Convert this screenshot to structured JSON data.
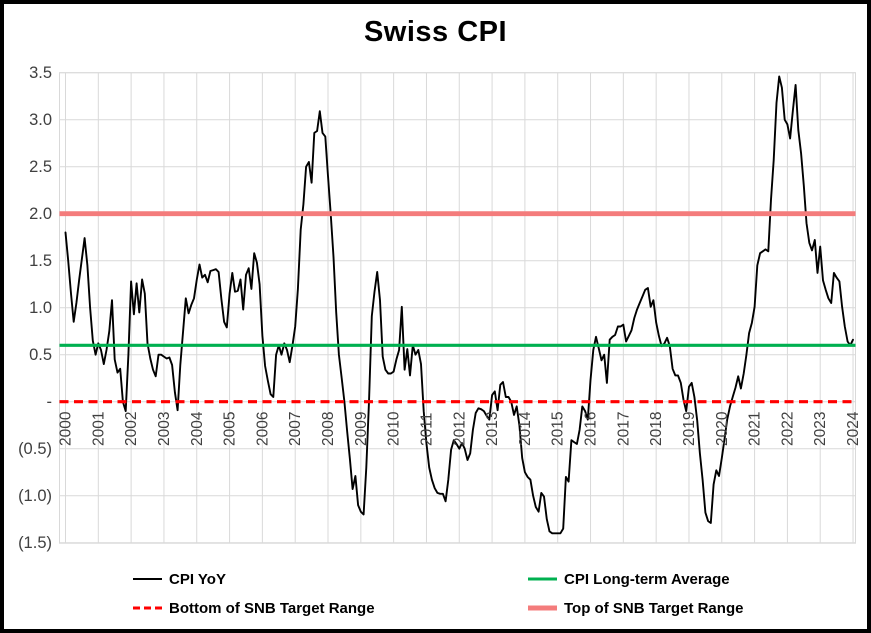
{
  "title": "Swiss CPI",
  "chart_data": {
    "type": "line",
    "title": "Swiss CPI",
    "x_start": "2000-01",
    "x_frequency": "monthly",
    "x_tick_labels": [
      "2000",
      "2001",
      "2002",
      "2003",
      "2004",
      "2005",
      "2006",
      "2007",
      "2008",
      "2009",
      "2010",
      "2011",
      "2012",
      "2013",
      "2014",
      "2015",
      "2016",
      "2017",
      "2018",
      "2019",
      "2020",
      "2021",
      "2022",
      "2023",
      "2024"
    ],
    "y_tick_labels": [
      "3.5",
      "3.0",
      "2.5",
      "2.0",
      "1.5",
      "1.0",
      "0.5",
      "-",
      "(0.5)",
      "(1.0)",
      "(1.5)"
    ],
    "y_tick_values": [
      3.5,
      3.0,
      2.5,
      2.0,
      1.5,
      1.0,
      0.5,
      0,
      -0.5,
      -1.0,
      -1.5
    ],
    "ylim": [
      -1.5,
      3.5
    ],
    "grid": true,
    "legend_position": "bottom",
    "colors": {
      "cpi_line": "#000000",
      "long_term_average": "#00B050",
      "bottom_target": "#FF0000",
      "top_target": "#F47C7C",
      "gridline": "#D9D9D9",
      "axis_label": "#404040"
    },
    "series": [
      {
        "name": "CPI YoY",
        "color": "#000000",
        "style": "solid",
        "values": [
          1.8,
          1.5,
          1.15,
          0.85,
          1.05,
          1.3,
          1.52,
          1.74,
          1.45,
          1.0,
          0.65,
          0.5,
          0.62,
          0.55,
          0.4,
          0.55,
          0.75,
          1.08,
          0.45,
          0.31,
          0.35,
          0.0,
          -0.1,
          0.5,
          1.28,
          0.93,
          1.26,
          0.95,
          1.3,
          1.15,
          0.62,
          0.46,
          0.34,
          0.27,
          0.5,
          0.5,
          0.48,
          0.46,
          0.47,
          0.39,
          0.1,
          -0.09,
          0.39,
          0.75,
          1.1,
          0.94,
          1.03,
          1.1,
          1.3,
          1.46,
          1.32,
          1.35,
          1.27,
          1.39,
          1.4,
          1.41,
          1.38,
          1.09,
          0.85,
          0.79,
          1.15,
          1.37,
          1.17,
          1.18,
          1.3,
          0.98,
          1.35,
          1.42,
          1.2,
          1.58,
          1.48,
          1.25,
          0.7,
          0.38,
          0.22,
          0.08,
          0.05,
          0.5,
          0.6,
          0.5,
          0.62,
          0.55,
          0.42,
          0.6,
          0.8,
          1.2,
          1.83,
          2.1,
          2.5,
          2.55,
          2.33,
          2.86,
          2.88,
          3.09,
          2.86,
          2.82,
          2.4,
          2.0,
          1.54,
          0.95,
          0.5,
          0.25,
          0.0,
          -0.32,
          -0.61,
          -0.93,
          -0.79,
          -1.1,
          -1.17,
          -1.2,
          -0.7,
          0.0,
          0.91,
          1.17,
          1.38,
          1.08,
          0.48,
          0.34,
          0.3,
          0.3,
          0.32,
          0.45,
          0.55,
          1.01,
          0.34,
          0.56,
          0.28,
          0.6,
          0.5,
          0.55,
          0.4,
          -0.1,
          -0.45,
          -0.7,
          -0.83,
          -0.92,
          -0.97,
          -0.98,
          -0.98,
          -1.06,
          -0.83,
          -0.51,
          -0.41,
          -0.45,
          -0.5,
          -0.44,
          -0.5,
          -0.62,
          -0.55,
          -0.3,
          -0.12,
          -0.07,
          -0.08,
          -0.1,
          -0.15,
          -0.19,
          0.07,
          0.11,
          -0.09,
          0.18,
          0.21,
          0.05,
          0.05,
          0.0,
          -0.14,
          -0.05,
          -0.25,
          -0.6,
          -0.75,
          -0.8,
          -0.83,
          -1.0,
          -1.12,
          -1.17,
          -0.97,
          -1.01,
          -1.25,
          -1.38,
          -1.4,
          -1.4,
          -1.4,
          -1.4,
          -1.35,
          -0.8,
          -0.85,
          -0.41,
          -0.43,
          -0.45,
          -0.3,
          -0.05,
          -0.1,
          -0.19,
          0.23,
          0.55,
          0.69,
          0.57,
          0.44,
          0.5,
          0.2,
          0.66,
          0.69,
          0.71,
          0.8,
          0.8,
          0.82,
          0.64,
          0.7,
          0.76,
          0.89,
          0.98,
          1.05,
          1.12,
          1.19,
          1.21,
          1.01,
          1.08,
          0.84,
          0.7,
          0.59,
          0.62,
          0.68,
          0.59,
          0.35,
          0.28,
          0.28,
          0.2,
          0.02,
          -0.1,
          0.16,
          0.2,
          0.05,
          -0.2,
          -0.55,
          -0.83,
          -1.18,
          -1.27,
          -1.29,
          -0.88,
          -0.73,
          -0.79,
          -0.6,
          -0.4,
          -0.19,
          -0.05,
          0.05,
          0.15,
          0.27,
          0.14,
          0.3,
          0.5,
          0.73,
          0.84,
          1.01,
          1.45,
          1.58,
          1.6,
          1.62,
          1.6,
          2.15,
          2.57,
          3.18,
          3.46,
          3.34,
          3.0,
          2.95,
          2.8,
          3.1,
          3.37,
          2.89,
          2.64,
          2.3,
          1.9,
          1.69,
          1.61,
          1.72,
          1.37,
          1.65,
          1.29,
          1.19,
          1.1,
          1.05,
          1.37,
          1.32,
          1.28,
          1.01,
          0.8,
          0.64,
          0.6,
          0.66
        ]
      },
      {
        "name": "CPI Long-term Average",
        "color": "#00B050",
        "style": "solid",
        "constant": 0.6
      },
      {
        "name": "Bottom of SNB Target Range",
        "color": "#FF0000",
        "style": "dashed",
        "constant": 0.0
      },
      {
        "name": "Top of SNB Target Range",
        "color": "#F47C7C",
        "style": "solid",
        "constant": 2.0
      }
    ]
  },
  "legend": {
    "row1_col1": "CPI YoY",
    "row1_col2": "CPI Long-term Average",
    "row2_col1": "Bottom of SNB Target Range",
    "row2_col2": "Top of SNB Target Range"
  }
}
